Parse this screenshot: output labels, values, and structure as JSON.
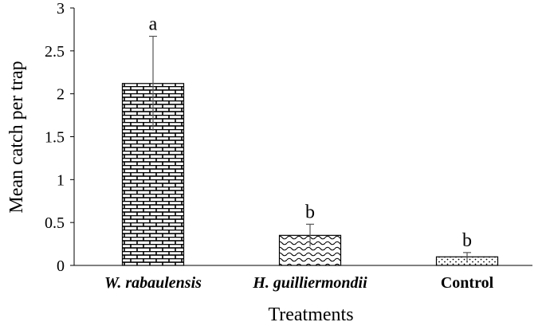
{
  "chart_data": {
    "type": "bar",
    "title": "",
    "xlabel": "Treatments",
    "ylabel": "Mean catch per trap",
    "ylim": [
      0,
      3
    ],
    "yticks": [
      0,
      0.5,
      1,
      1.5,
      2,
      2.5,
      3
    ],
    "ytick_labels": [
      "0",
      "0.5",
      "1",
      "1.5",
      "2",
      "2.5",
      "3"
    ],
    "grid": false,
    "legend": "none",
    "categories": [
      "W. rabaulensis",
      "H. guilliermondii",
      "Control"
    ],
    "category_italic": [
      true,
      true,
      false
    ],
    "values": [
      2.12,
      0.35,
      0.1
    ],
    "error": [
      0.55,
      0.13,
      0.05
    ],
    "significance": [
      "a",
      "b",
      "b"
    ],
    "patterns": [
      "brick",
      "wave",
      "dots"
    ]
  }
}
